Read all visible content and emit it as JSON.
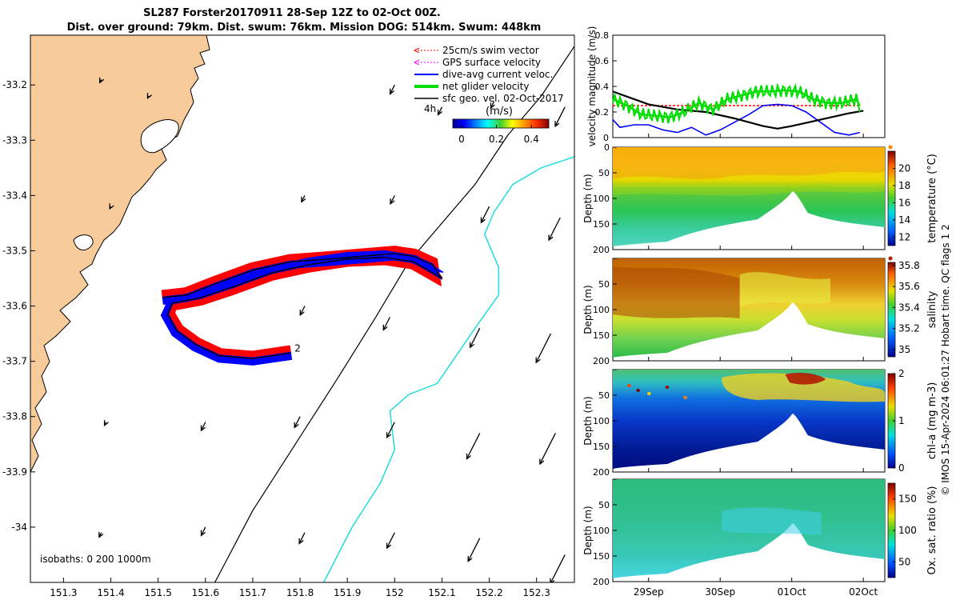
{
  "title_line1": "SL287 Forster20170911 28-Sep 12Z to 02-Oct 00Z.",
  "title_line2": "Dist. over ground: 79km. Dist. swum: 76km. Mission DOG: 514km. Swum: 448km",
  "credit": "© IMOS 15-Apr-2024 06:01:27 Hobart time. QC flags 1  2",
  "colors": {
    "land": "#f8cb9a",
    "swim_vector": "#ff0000",
    "gps_velocity": "#ff00ff",
    "dive_avg": "#0000ff",
    "net_glider": "#00dd00",
    "sfc_geo": "#000000",
    "contour_1000": "#000000",
    "contour_200": "#22dddd"
  },
  "chart_data": [
    {
      "type": "map",
      "name": "glider-track-map",
      "xlim": [
        151.23,
        152.38
      ],
      "ylim": [
        -34.1,
        -33.11
      ],
      "x_ticks": [
        151.3,
        151.4,
        151.5,
        151.6,
        151.7,
        151.8,
        151.9,
        152,
        152.1,
        152.2,
        152.3
      ],
      "x_tick_labels": [
        "151.3",
        "151.4",
        "151.5",
        "151.6",
        "151.7",
        "151.8",
        "151.9",
        "152",
        "152.1",
        "152.2",
        "152.3"
      ],
      "y_ticks": [
        -33.2,
        -33.3,
        -33.4,
        -33.5,
        -33.6,
        -33.7,
        -33.8,
        -33.9,
        -34
      ],
      "y_tick_labels": [
        "-33.2",
        "-33.3",
        "-33.4",
        "-33.5",
        "-33.6",
        "-33.7",
        "-33.8",
        "-33.9",
        "-34"
      ],
      "legend": [
        {
          "label": "25cm/s swim vector",
          "color": "#ff0000",
          "style": "dashed-arrow"
        },
        {
          "label": "GPS surface velocity",
          "color": "#ff00ff",
          "style": "dashed-arrow"
        },
        {
          "label": "dive-avg current veloc.",
          "color": "#0000ff",
          "style": "line"
        },
        {
          "label": "net glider velocity",
          "color": "#00dd00",
          "style": "thick-line"
        },
        {
          "label": "sfc geo. vel. 02-Oct-2017",
          "color": "#000000",
          "style": "line"
        }
      ],
      "colorbar": {
        "label": "(m/s)",
        "ticks": [
          "0",
          "0.2",
          "0.4"
        ],
        "range": [
          -0.05,
          0.5
        ]
      },
      "labels": {
        "time_step": "4h",
        "isobaths": "isobaths: 0   200  1000m",
        "track_end": "2"
      },
      "track": {
        "lon": [
          151.51,
          151.56,
          151.62,
          151.7,
          151.78,
          151.86,
          151.93,
          152.0,
          152.04,
          152.08,
          152.1,
          152.04,
          151.98,
          151.9,
          151.82,
          151.74,
          151.66,
          151.59,
          151.53,
          151.52,
          151.54,
          151.58,
          151.63,
          151.7,
          151.78
        ],
        "lat": [
          -33.585,
          -33.58,
          -33.56,
          -33.535,
          -33.52,
          -33.515,
          -33.51,
          -33.505,
          -33.51,
          -33.525,
          -33.55,
          -33.52,
          -33.512,
          -33.515,
          -33.525,
          -33.54,
          -33.565,
          -33.585,
          -33.595,
          -33.615,
          -33.645,
          -33.67,
          -33.69,
          -33.695,
          -33.685
        ]
      },
      "isobath_1000_m": {
        "lon": [
          151.62,
          151.7,
          151.79,
          151.88,
          151.96,
          152.03,
          152.1,
          152.17,
          152.24,
          152.31,
          152.38
        ],
        "lat": [
          -34.1,
          -33.97,
          -33.85,
          -33.73,
          -33.62,
          -33.52,
          -33.45,
          -33.38,
          -33.29,
          -33.22,
          -33.13
        ]
      },
      "isobath_200_m": {
        "lon": [
          151.85,
          151.91,
          151.97,
          152.0,
          151.99,
          152.03,
          152.09,
          152.13,
          152.17,
          152.22,
          152.22,
          152.19,
          152.21,
          152.25,
          152.31,
          152.38
        ],
        "lat": [
          -34.1,
          -34.0,
          -33.92,
          -33.86,
          -33.79,
          -33.76,
          -33.74,
          -33.69,
          -33.64,
          -33.58,
          -33.53,
          -33.47,
          -33.43,
          -33.38,
          -33.35,
          -33.33
        ]
      },
      "geo_arrows": [
        {
          "lon": 151.38,
          "lat": -33.19,
          "length_mps": 0.05
        },
        {
          "lon": 151.48,
          "lat": -33.22,
          "length_mps": 0.0
        },
        {
          "lon": 152.0,
          "lat": -33.2,
          "length_mps": 0.14
        },
        {
          "lon": 152.1,
          "lat": -33.24,
          "length_mps": 0.12
        },
        {
          "lon": 152.21,
          "lat": -33.23,
          "length_mps": 0.1
        },
        {
          "lon": 152.36,
          "lat": -33.24,
          "length_mps": 0.3
        },
        {
          "lon": 151.4,
          "lat": -33.42,
          "length_mps": 0.0
        },
        {
          "lon": 151.81,
          "lat": -33.4,
          "length_mps": 0.1
        },
        {
          "lon": 152.0,
          "lat": -33.4,
          "length_mps": 0.13
        },
        {
          "lon": 152.2,
          "lat": -33.42,
          "length_mps": 0.25
        },
        {
          "lon": 152.35,
          "lat": -33.44,
          "length_mps": 0.35
        },
        {
          "lon": 151.81,
          "lat": -33.6,
          "length_mps": 0.14
        },
        {
          "lon": 151.99,
          "lat": -33.62,
          "length_mps": 0.2
        },
        {
          "lon": 152.18,
          "lat": -33.64,
          "length_mps": 0.3
        },
        {
          "lon": 152.33,
          "lat": -33.65,
          "length_mps": 0.45
        },
        {
          "lon": 151.39,
          "lat": -33.81,
          "length_mps": 0.05
        },
        {
          "lon": 151.6,
          "lat": -33.81,
          "length_mps": 0.13
        },
        {
          "lon": 151.8,
          "lat": -33.8,
          "length_mps": 0.17
        },
        {
          "lon": 152.0,
          "lat": -33.81,
          "length_mps": 0.24
        },
        {
          "lon": 152.18,
          "lat": -33.83,
          "length_mps": 0.4
        },
        {
          "lon": 152.34,
          "lat": -33.83,
          "length_mps": 0.48
        },
        {
          "lon": 151.38,
          "lat": -34.01,
          "length_mps": 0.07
        },
        {
          "lon": 151.6,
          "lat": -34.0,
          "length_mps": 0.13
        },
        {
          "lon": 151.81,
          "lat": -34.01,
          "length_mps": 0.17
        },
        {
          "lon": 152.0,
          "lat": -34.01,
          "length_mps": 0.24
        },
        {
          "lon": 152.18,
          "lat": -34.02,
          "length_mps": 0.36
        },
        {
          "lon": 152.36,
          "lat": -34.05,
          "length_mps": 0.45
        }
      ]
    },
    {
      "type": "line",
      "name": "velocity-magnitude",
      "ylabel": "velocity magnitude (m/s)",
      "ylim": [
        0,
        0.8
      ],
      "y_ticks": [
        "0",
        "0.2",
        "0.4",
        "0.6",
        "0.8"
      ],
      "xlim_days": [
        28.5,
        32.3
      ],
      "series": [
        {
          "name": "swim speed",
          "color": "#ff0000",
          "x": [
            28.5,
            31.95
          ],
          "y": [
            0.25,
            0.25
          ]
        },
        {
          "name": "net glider velocity",
          "color": "#00dd00",
          "x": [
            28.5,
            28.7,
            28.9,
            29.1,
            29.3,
            29.5,
            29.7,
            29.9,
            30.1,
            30.3,
            30.5,
            30.7,
            30.9,
            31.1,
            31.3,
            31.5,
            31.7,
            31.9,
            31.95
          ],
          "y": [
            0.3,
            0.25,
            0.18,
            0.17,
            0.16,
            0.2,
            0.27,
            0.22,
            0.3,
            0.33,
            0.36,
            0.36,
            0.37,
            0.36,
            0.3,
            0.27,
            0.27,
            0.3,
            0.25
          ]
        },
        {
          "name": "dive-avg current",
          "color": "#0000ff",
          "x": [
            28.5,
            28.6,
            28.8,
            29.0,
            29.2,
            29.4,
            29.6,
            29.8,
            30.0,
            30.2,
            30.4,
            30.6,
            30.8,
            31.0,
            31.2,
            31.4,
            31.6,
            31.8,
            31.95
          ],
          "y": [
            0.14,
            0.08,
            0.1,
            0.1,
            0.06,
            0.04,
            0.08,
            0.02,
            0.06,
            0.12,
            0.18,
            0.25,
            0.26,
            0.25,
            0.2,
            0.12,
            0.04,
            0.02,
            0.04
          ]
        },
        {
          "name": "sfc geo velocity",
          "color": "#000000",
          "x": [
            28.5,
            28.7,
            29.0,
            29.4,
            29.8,
            30.2,
            30.6,
            30.8,
            31.0,
            31.4,
            31.8,
            32.0
          ],
          "y": [
            0.36,
            0.32,
            0.26,
            0.22,
            0.2,
            0.15,
            0.09,
            0.07,
            0.09,
            0.14,
            0.19,
            0.21
          ]
        }
      ]
    },
    {
      "type": "heatmap",
      "name": "temperature-section",
      "ylabel": "Depth (m)",
      "colorbar_label": "temperature (°C)",
      "colorbar_ticks": [
        "12",
        "14",
        "16",
        "18",
        "20"
      ],
      "colorbar_range": [
        11,
        22
      ],
      "ylim": [
        200,
        0
      ],
      "y_ticks": [
        "0",
        "50",
        "100",
        "150",
        "200"
      ]
    },
    {
      "type": "heatmap",
      "name": "salinity-section",
      "ylabel": "Depth (m)",
      "colorbar_label": "salinity",
      "colorbar_ticks": [
        "35",
        "35.2",
        "35.4",
        "35.6",
        "35.8"
      ],
      "colorbar_range": [
        34.93,
        35.83
      ],
      "ylim": [
        200,
        0
      ],
      "y_ticks": [
        "50",
        "100",
        "150",
        "200"
      ]
    },
    {
      "type": "heatmap",
      "name": "chlorophyll-section",
      "ylabel": "Depth (m)",
      "colorbar_label": "chl-a (mg m-3)",
      "colorbar_ticks": [
        "0",
        "1",
        "2"
      ],
      "colorbar_range": [
        0,
        2
      ],
      "ylim": [
        200,
        0
      ],
      "y_ticks": [
        "50",
        "100",
        "150",
        "200"
      ]
    },
    {
      "type": "heatmap",
      "name": "oxygen-section",
      "ylabel": "Depth (m)",
      "colorbar_label": "Ox. sat. ratio (%)",
      "colorbar_ticks": [
        "50",
        "100",
        "150"
      ],
      "colorbar_range": [
        25,
        175
      ],
      "ylim": [
        200,
        0
      ],
      "y_ticks": [
        "50",
        "100",
        "150",
        "200"
      ],
      "x_tick_labels": [
        "29Sep",
        "30Sep",
        "01Oct",
        "02Oct"
      ],
      "x_ticks_days": [
        29,
        30,
        31,
        32
      ]
    }
  ]
}
